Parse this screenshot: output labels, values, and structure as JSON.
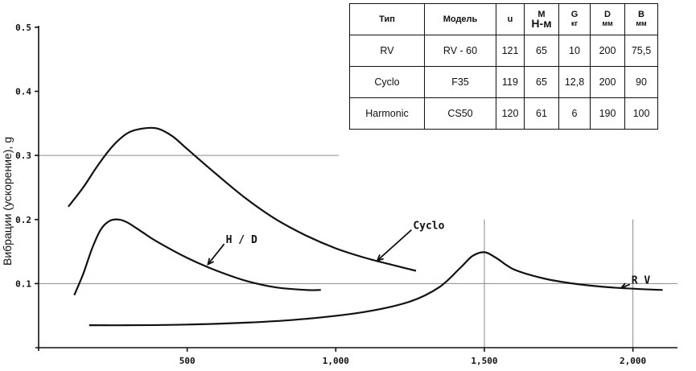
{
  "chart_data": {
    "type": "line",
    "ylabel": "Вибрации (ускорение), g",
    "xlabel": "",
    "xlim": [
      0,
      2150
    ],
    "ylim": [
      0,
      0.53
    ],
    "x_ticks": [
      {
        "value": 500,
        "label": "500"
      },
      {
        "value": 1000,
        "label": "1,000"
      },
      {
        "value": 1500,
        "label": "1,500"
      },
      {
        "value": 2000,
        "label": "2,000"
      }
    ],
    "y_ticks": [
      {
        "value": 0.1,
        "label": "0.1"
      },
      {
        "value": 0.2,
        "label": "0.2"
      },
      {
        "value": 0.3,
        "label": "0.3"
      },
      {
        "value": 0.4,
        "label": "0.4"
      },
      {
        "value": 0.5,
        "label": "0.5"
      }
    ],
    "gridlines": {
      "horizontal": [
        {
          "y": 0.1,
          "x_end": 2150
        },
        {
          "y": 0.3,
          "x_end": 1010
        }
      ],
      "vertical": [
        {
          "x": 1500,
          "y_end": 0.2
        },
        {
          "x": 2000,
          "y_end": 0.2
        }
      ]
    },
    "series": [
      {
        "name": "Cyclo",
        "points": [
          [
            100,
            0.22
          ],
          [
            150,
            0.25
          ],
          [
            200,
            0.285
          ],
          [
            250,
            0.315
          ],
          [
            300,
            0.335
          ],
          [
            350,
            0.342
          ],
          [
            400,
            0.342
          ],
          [
            450,
            0.33
          ],
          [
            500,
            0.31
          ],
          [
            600,
            0.27
          ],
          [
            700,
            0.232
          ],
          [
            800,
            0.2
          ],
          [
            900,
            0.175
          ],
          [
            1000,
            0.155
          ],
          [
            1100,
            0.14
          ],
          [
            1200,
            0.128
          ],
          [
            1270,
            0.12
          ]
        ]
      },
      {
        "name": "H/D",
        "points": [
          [
            120,
            0.082
          ],
          [
            150,
            0.115
          ],
          [
            180,
            0.155
          ],
          [
            210,
            0.185
          ],
          [
            240,
            0.198
          ],
          [
            270,
            0.2
          ],
          [
            300,
            0.195
          ],
          [
            350,
            0.18
          ],
          [
            400,
            0.165
          ],
          [
            500,
            0.14
          ],
          [
            600,
            0.12
          ],
          [
            700,
            0.104
          ],
          [
            800,
            0.094
          ],
          [
            900,
            0.09
          ],
          [
            950,
            0.09
          ]
        ]
      },
      {
        "name": "RV",
        "points": [
          [
            170,
            0.035
          ],
          [
            300,
            0.035
          ],
          [
            500,
            0.036
          ],
          [
            700,
            0.039
          ],
          [
            900,
            0.045
          ],
          [
            1100,
            0.056
          ],
          [
            1250,
            0.072
          ],
          [
            1350,
            0.095
          ],
          [
            1420,
            0.125
          ],
          [
            1460,
            0.143
          ],
          [
            1500,
            0.149
          ],
          [
            1540,
            0.14
          ],
          [
            1600,
            0.122
          ],
          [
            1700,
            0.108
          ],
          [
            1800,
            0.1
          ],
          [
            1900,
            0.095
          ],
          [
            2000,
            0.092
          ],
          [
            2100,
            0.09
          ]
        ]
      }
    ],
    "annotations": [
      {
        "text": "Cyclo",
        "series": "Cyclo",
        "text_x": 1260,
        "text_y": 0.185,
        "arrow_to": [
          1140,
          0.136
        ]
      },
      {
        "text": "H / D",
        "series": "H/D",
        "text_x": 630,
        "text_y": 0.163,
        "arrow_to": [
          570,
          0.13
        ]
      },
      {
        "text": "R V",
        "series": "RV",
        "text_x": 1995,
        "text_y": 0.1,
        "arrow_to": [
          1960,
          0.093
        ]
      }
    ]
  },
  "spec_table": {
    "headers": [
      {
        "top": "Тип",
        "unit": ""
      },
      {
        "top": "Модель",
        "unit": ""
      },
      {
        "top": "u",
        "unit": ""
      },
      {
        "top": "M",
        "unit": "Н-м"
      },
      {
        "top": "G",
        "unit": "кг"
      },
      {
        "top": "D",
        "unit": "мм"
      },
      {
        "top": "B",
        "unit": "мм"
      }
    ],
    "rows": [
      [
        "RV",
        "RV - 60",
        "121",
        "65",
        "10",
        "200",
        "75,5"
      ],
      [
        "Cyclo",
        "F35",
        "119",
        "65",
        "12,8",
        "200",
        "90"
      ],
      [
        "Harmonic",
        "CS50",
        "120",
        "61",
        "6",
        "190",
        "100"
      ]
    ]
  }
}
